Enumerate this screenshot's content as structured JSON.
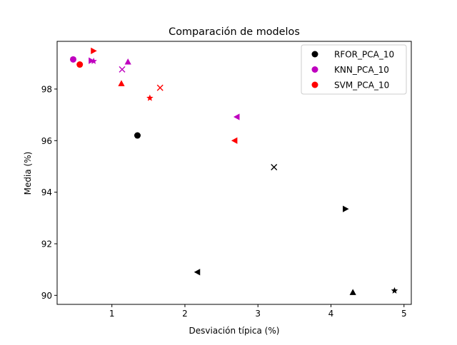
{
  "chart_data": {
    "type": "scatter",
    "title": "Comparación de modelos",
    "xlabel": "Desviación típica (%)",
    "ylabel": "Media (%)",
    "xlim": [
      0.25,
      5.1
    ],
    "ylim": [
      89.65,
      99.85
    ],
    "xticks": [
      1,
      2,
      3,
      4,
      5
    ],
    "yticks": [
      90,
      92,
      94,
      96,
      98
    ],
    "grid": false,
    "legend_position": "top-right",
    "series": [
      {
        "name": "RFOR_PCA_10",
        "color": "#000000",
        "points": [
          {
            "x": 1.35,
            "y": 96.2,
            "marker": "circle"
          },
          {
            "x": 3.22,
            "y": 94.97,
            "marker": "x"
          },
          {
            "x": 4.2,
            "y": 93.35,
            "marker": "triangle-right"
          },
          {
            "x": 2.17,
            "y": 90.9,
            "marker": "triangle-left"
          },
          {
            "x": 4.3,
            "y": 90.12,
            "marker": "triangle-up"
          },
          {
            "x": 4.87,
            "y": 90.18,
            "marker": "star"
          }
        ]
      },
      {
        "name": "KNN_PCA_10",
        "color": "#bf00bf",
        "points": [
          {
            "x": 0.47,
            "y": 99.15,
            "marker": "circle"
          },
          {
            "x": 0.72,
            "y": 99.1,
            "marker": "triangle-right"
          },
          {
            "x": 0.75,
            "y": 99.08,
            "marker": "star"
          },
          {
            "x": 1.22,
            "y": 99.06,
            "marker": "triangle-up"
          },
          {
            "x": 1.14,
            "y": 98.76,
            "marker": "x"
          },
          {
            "x": 2.71,
            "y": 96.92,
            "marker": "triangle-left"
          }
        ]
      },
      {
        "name": "SVM_PCA_10",
        "color": "#ff0000",
        "points": [
          {
            "x": 0.56,
            "y": 98.95,
            "marker": "circle"
          },
          {
            "x": 0.75,
            "y": 99.48,
            "marker": "triangle-right"
          },
          {
            "x": 1.13,
            "y": 98.22,
            "marker": "triangle-up"
          },
          {
            "x": 1.66,
            "y": 98.05,
            "marker": "x"
          },
          {
            "x": 1.52,
            "y": 97.65,
            "marker": "star"
          },
          {
            "x": 2.68,
            "y": 96.0,
            "marker": "triangle-left"
          }
        ]
      }
    ]
  }
}
